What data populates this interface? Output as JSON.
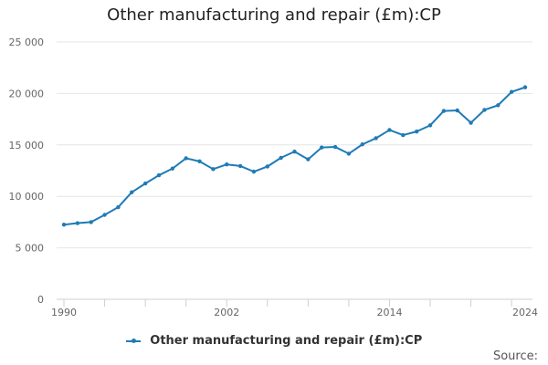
{
  "chart_data": {
    "type": "line",
    "title": "Other manufacturing and repair (£m):CP",
    "xlabel": "",
    "ylabel": "",
    "x": [
      1990,
      1991,
      1992,
      1993,
      1994,
      1995,
      1996,
      1997,
      1998,
      1999,
      2000,
      2001,
      2002,
      2003,
      2004,
      2005,
      2006,
      2007,
      2008,
      2009,
      2010,
      2011,
      2012,
      2013,
      2014,
      2015,
      2016,
      2017,
      2018,
      2019,
      2020,
      2021,
      2022,
      2023,
      2024
    ],
    "series": [
      {
        "name": "Other manufacturing and repair (£m):CP",
        "values": [
          7250,
          7400,
          7500,
          8200,
          8950,
          10400,
          11250,
          12050,
          12700,
          13700,
          13400,
          12650,
          13100,
          12950,
          12400,
          12900,
          13750,
          14350,
          13600,
          14750,
          14800,
          14150,
          15050,
          15650,
          16450,
          15950,
          16300,
          16900,
          18300,
          18350,
          17150,
          18400,
          18850,
          20150,
          20600
        ],
        "color": "#1f7bb6"
      }
    ],
    "xlim": [
      1990,
      2024
    ],
    "ylim": [
      0,
      25000
    ],
    "x_tick_labels": [
      "1990",
      "2002",
      "2014",
      "2024"
    ],
    "x_tick_values": [
      1990,
      2002,
      2014,
      2024
    ],
    "x_minor_ticks": [
      1990,
      1993,
      1996,
      1999,
      2002,
      2005,
      2008,
      2011,
      2014,
      2017,
      2020,
      2023
    ],
    "y_tick_values": [
      0,
      5000,
      10000,
      15000,
      20000,
      25000
    ],
    "y_tick_labels": [
      "0",
      "5 000",
      "10 000",
      "15 000",
      "20 000",
      "25 000"
    ],
    "grid": "horizontal",
    "legend": "bottom-center"
  },
  "legend_label": "Other manufacturing and repair (£m):CP",
  "source_label": "Source:"
}
